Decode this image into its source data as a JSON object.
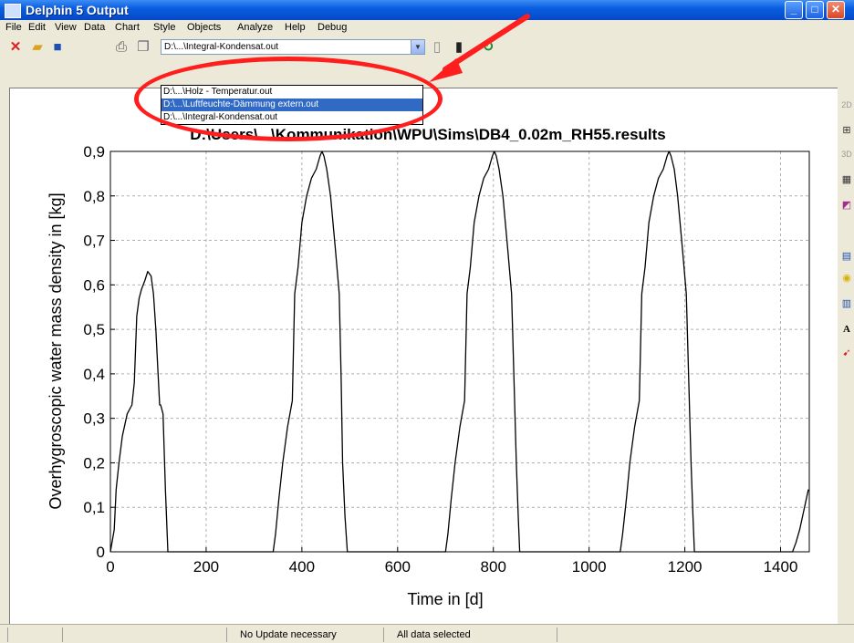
{
  "window": {
    "title": "Delphin 5 Output",
    "minimize_label": "_",
    "maximize_label": "□",
    "close_label": "✕"
  },
  "menu": [
    "File",
    "Edit",
    "View",
    "Data",
    "Chart",
    "Style",
    "Objects",
    "Analyze",
    "Help",
    "Debug"
  ],
  "toolbar": {
    "file_combo_value": "D:\\...\\Integral-Kondensat.out",
    "dropdown_options": [
      "D:\\...\\Holz - Temperatur.out",
      "D:\\...\\Luftfeuchte-Dämmung extern.out",
      "D:\\...\\Integral-Kondensat.out"
    ],
    "selected_index": 1,
    "icons": [
      "close-icon",
      "open-folder-icon",
      "save-icon",
      "print-icon",
      "copy-icon",
      "document-icon",
      "trash-icon",
      "refresh-icon"
    ]
  },
  "right_panel": {
    "labels": [
      "2D",
      "3D",
      "A"
    ],
    "icons": [
      "chart-2d-icon",
      "axis-icon",
      "chart-3d-icon",
      "table-icon",
      "color-map-icon",
      "grid-icon",
      "bulb-icon",
      "data-icon",
      "text-icon",
      "arrow-icon"
    ]
  },
  "status": {
    "pane1": "",
    "pane2": "",
    "message": "No Update necessary",
    "selection": "All data selected"
  },
  "chart_data": {
    "type": "line",
    "title": "D:\\Users\\...\\Kommunikation\\WPU\\Sims\\DB4_0.02m_RH55.results",
    "xlabel": "Time in [d]",
    "ylabel": "Overhygroscopic water mass density in [kg]",
    "xlim": [
      0,
      1460
    ],
    "ylim": [
      0,
      0.9
    ],
    "xticks": [
      0,
      200,
      400,
      600,
      800,
      1000,
      1200,
      1400
    ],
    "yticks": [
      "0",
      "0,1",
      "0,2",
      "0,3",
      "0,4",
      "0,5",
      "0,6",
      "0,7",
      "0,8",
      "0,9"
    ],
    "grid": true,
    "series": [
      {
        "color": "#000000",
        "x": [
          0,
          8,
          12,
          18,
          25,
          35,
          45,
          50,
          55,
          60,
          65,
          72,
          78,
          85,
          90,
          95,
          100,
          103,
          105,
          110,
          115,
          120,
          340,
          345,
          352,
          360,
          370,
          380,
          385,
          392,
          400,
          410,
          420,
          430,
          438,
          442,
          446,
          452,
          460,
          470,
          478,
          482,
          485,
          490,
          495,
          700,
          705,
          712,
          720,
          730,
          740,
          745,
          752,
          760,
          770,
          780,
          790,
          798,
          802,
          806,
          812,
          820,
          830,
          838,
          843,
          848,
          852,
          855,
          1065,
          1070,
          1078,
          1085,
          1095,
          1105,
          1110,
          1117,
          1125,
          1135,
          1145,
          1155,
          1163,
          1167,
          1171,
          1178,
          1185,
          1195,
          1203,
          1208,
          1213,
          1217,
          1220,
          1425,
          1432,
          1440,
          1448,
          1458
        ],
        "y": [
          0,
          0.05,
          0.14,
          0.2,
          0.26,
          0.31,
          0.33,
          0.38,
          0.53,
          0.57,
          0.59,
          0.61,
          0.63,
          0.62,
          0.58,
          0.5,
          0.39,
          0.33,
          0.33,
          0.31,
          0.14,
          0,
          0,
          0.04,
          0.12,
          0.2,
          0.28,
          0.34,
          0.58,
          0.64,
          0.74,
          0.8,
          0.84,
          0.86,
          0.89,
          0.9,
          0.89,
          0.86,
          0.8,
          0.68,
          0.58,
          0.39,
          0.2,
          0.08,
          0,
          0,
          0.04,
          0.12,
          0.2,
          0.28,
          0.34,
          0.58,
          0.64,
          0.74,
          0.8,
          0.84,
          0.86,
          0.89,
          0.9,
          0.89,
          0.86,
          0.8,
          0.68,
          0.58,
          0.39,
          0.2,
          0.08,
          0,
          0,
          0.04,
          0.12,
          0.2,
          0.28,
          0.34,
          0.58,
          0.64,
          0.74,
          0.8,
          0.84,
          0.86,
          0.89,
          0.9,
          0.89,
          0.86,
          0.8,
          0.68,
          0.58,
          0.39,
          0.2,
          0.08,
          0,
          0,
          0.02,
          0.05,
          0.09,
          0.14
        ]
      }
    ]
  }
}
